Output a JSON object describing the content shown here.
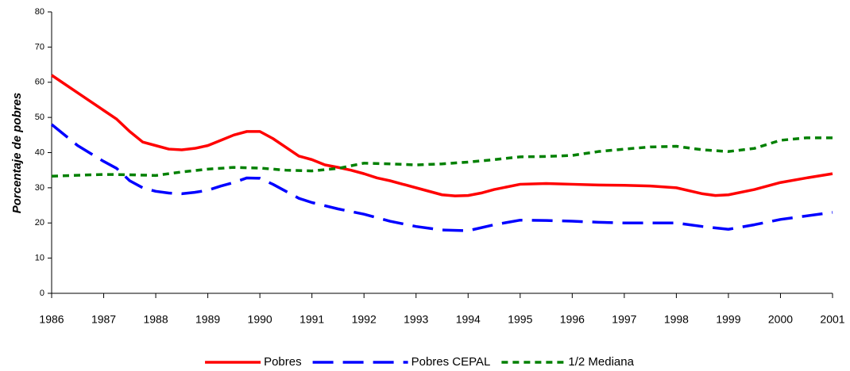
{
  "chart_data": {
    "type": "line",
    "ylabel": "Porcentaje de pobres",
    "xlim": [
      1986,
      2001
    ],
    "xticks": [
      1986,
      1987,
      1988,
      1989,
      1990,
      1991,
      1992,
      1993,
      1994,
      1995,
      1996,
      1997,
      1998,
      1999,
      2000,
      2001
    ],
    "ylim": [
      0,
      80
    ],
    "yticks": [
      0,
      10,
      20,
      30,
      40,
      50,
      60,
      70,
      80
    ],
    "grid": false,
    "legend": "bottom",
    "series": [
      {
        "name": "Pobres",
        "color": "#ff0000",
        "dash": "solid",
        "x": [
          1986,
          1986.5,
          1987,
          1987.25,
          1987.5,
          1987.75,
          1988,
          1988.25,
          1988.5,
          1988.75,
          1989,
          1989.25,
          1989.5,
          1989.75,
          1990,
          1990.25,
          1990.5,
          1990.75,
          1991,
          1991.25,
          1991.5,
          1991.75,
          1992,
          1992.25,
          1992.5,
          1993,
          1993.5,
          1993.75,
          1994,
          1994.25,
          1994.5,
          1995,
          1995.5,
          1996,
          1996.5,
          1997,
          1997.5,
          1998,
          1998.5,
          1998.75,
          1999,
          1999.5,
          2000,
          2000.5,
          2001
        ],
        "values": [
          62,
          57,
          52,
          49.5,
          46,
          43,
          42,
          41,
          40.8,
          41.2,
          42,
          43.5,
          45,
          46,
          46,
          44,
          41.5,
          39,
          38,
          36.5,
          35.8,
          35,
          34,
          32.8,
          32,
          30,
          28,
          27.7,
          27.8,
          28.5,
          29.5,
          31,
          31.2,
          31,
          30.8,
          30.7,
          30.5,
          30,
          28.3,
          27.8,
          28,
          29.5,
          31.5,
          32.8,
          34
        ]
      },
      {
        "name": "Pobres CEPAL",
        "color": "#0000ff",
        "dash": "long",
        "x": [
          1986,
          1986.5,
          1987,
          1987.25,
          1987.5,
          1987.75,
          1988,
          1988.25,
          1988.5,
          1988.75,
          1989,
          1989.25,
          1989.5,
          1989.75,
          1990,
          1990.25,
          1990.5,
          1990.75,
          1991,
          1991.5,
          1992,
          1992.5,
          1993,
          1993.5,
          1994,
          1994.5,
          1995,
          1995.5,
          1996,
          1996.5,
          1997,
          1998,
          1998.5,
          1999,
          1999.5,
          2000,
          2001
        ],
        "values": [
          48,
          42,
          37.5,
          35.5,
          32,
          30,
          29,
          28.5,
          28.3,
          28.7,
          29.3,
          30.5,
          31.5,
          32.8,
          32.7,
          31,
          29,
          27,
          25.8,
          24,
          22.5,
          20.5,
          19,
          18,
          17.8,
          19.5,
          20.8,
          20.7,
          20.5,
          20.2,
          20,
          20,
          19,
          18.2,
          19.5,
          21,
          23
        ]
      },
      {
        "name": "1/2 Mediana",
        "color": "#008000",
        "dash": "short",
        "x": [
          1986,
          1987,
          1987.5,
          1988,
          1988.5,
          1989,
          1989.5,
          1990,
          1990.5,
          1991,
          1991.5,
          1992,
          1992.5,
          1993,
          1993.5,
          1994,
          1994.5,
          1995,
          1995.5,
          1996,
          1996.5,
          1997,
          1997.5,
          1998,
          1998.5,
          1999,
          1999.5,
          2000,
          2000.5,
          2001
        ],
        "values": [
          33.3,
          33.8,
          33.7,
          33.5,
          34.5,
          35.3,
          35.8,
          35.6,
          35,
          34.8,
          35.5,
          37,
          36.8,
          36.5,
          36.8,
          37.3,
          38,
          38.8,
          38.9,
          39.2,
          40.3,
          41,
          41.6,
          41.8,
          40.8,
          40.3,
          41.2,
          43.5,
          44.2,
          44.2
        ]
      }
    ]
  }
}
